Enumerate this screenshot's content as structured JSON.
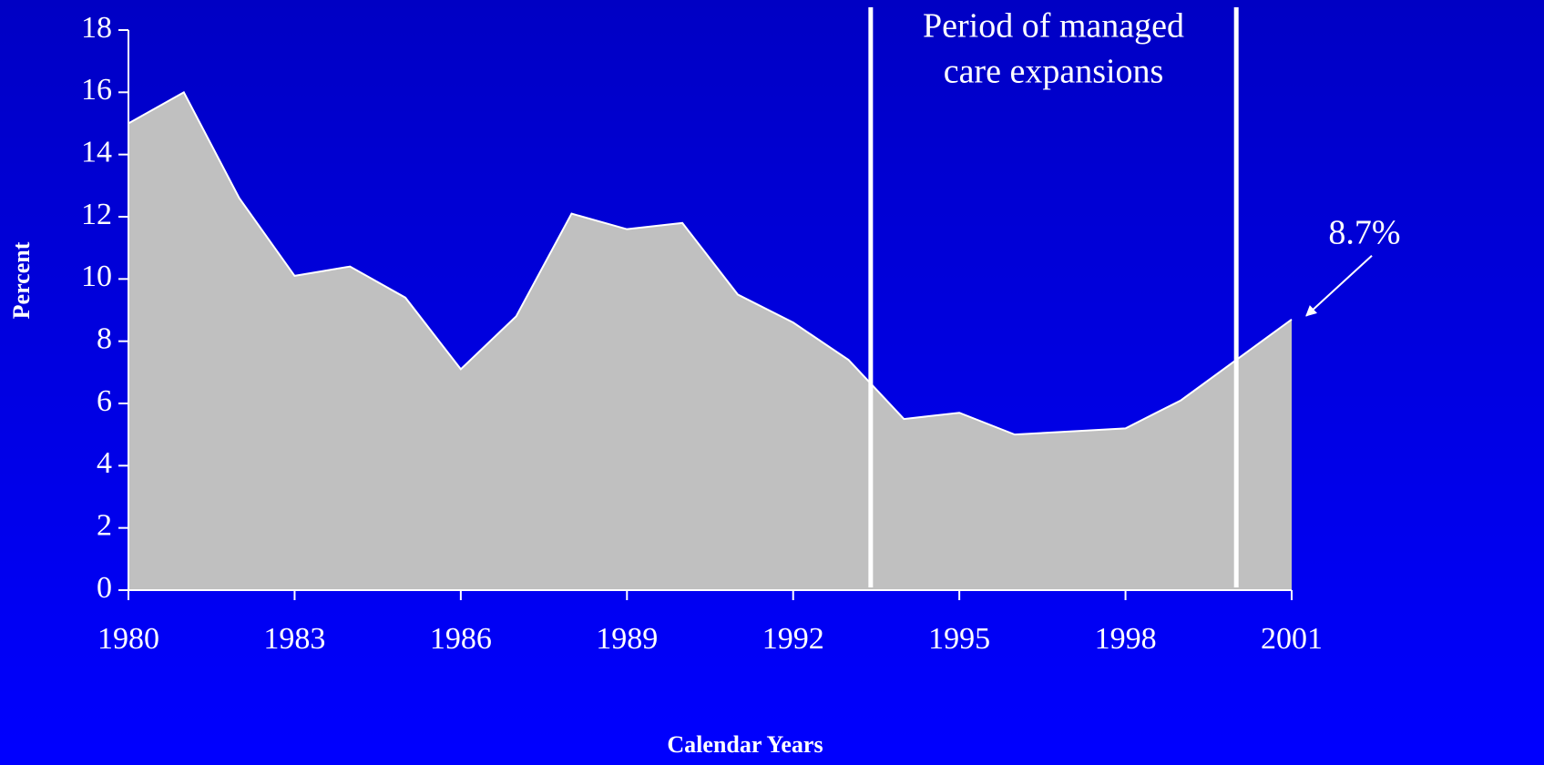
{
  "chart_data": {
    "type": "area",
    "xlabel": "Calendar Years",
    "ylabel": "Percent",
    "x": [
      1980,
      1981,
      1982,
      1983,
      1984,
      1985,
      1986,
      1987,
      1988,
      1989,
      1990,
      1991,
      1992,
      1993,
      1994,
      1995,
      1996,
      1997,
      1998,
      1999,
      2000,
      2001
    ],
    "values": [
      15.0,
      16.0,
      12.6,
      10.1,
      10.4,
      9.4,
      7.1,
      8.8,
      12.1,
      11.6,
      11.8,
      9.5,
      8.6,
      7.4,
      5.5,
      5.7,
      5.0,
      5.1,
      5.2,
      6.1,
      7.4,
      8.7
    ],
    "value_labels": [
      null,
      null,
      null,
      null,
      null,
      null,
      null,
      null,
      null,
      null,
      null,
      null,
      null,
      null,
      null,
      null,
      null,
      null,
      null,
      null,
      null,
      "8.7%"
    ],
    "color": "#c0c0c0",
    "xlim": [
      1980,
      2001
    ],
    "xticks": [
      1980,
      1983,
      1986,
      1989,
      1992,
      1995,
      1998,
      2001
    ],
    "ylim": [
      0,
      18
    ],
    "yticks": [
      0,
      2,
      4,
      6,
      8,
      10,
      12,
      14,
      16,
      18
    ],
    "period": {
      "start": 1993.4,
      "end": 2000,
      "label": [
        "Period of managed",
        "care expansions"
      ]
    }
  }
}
